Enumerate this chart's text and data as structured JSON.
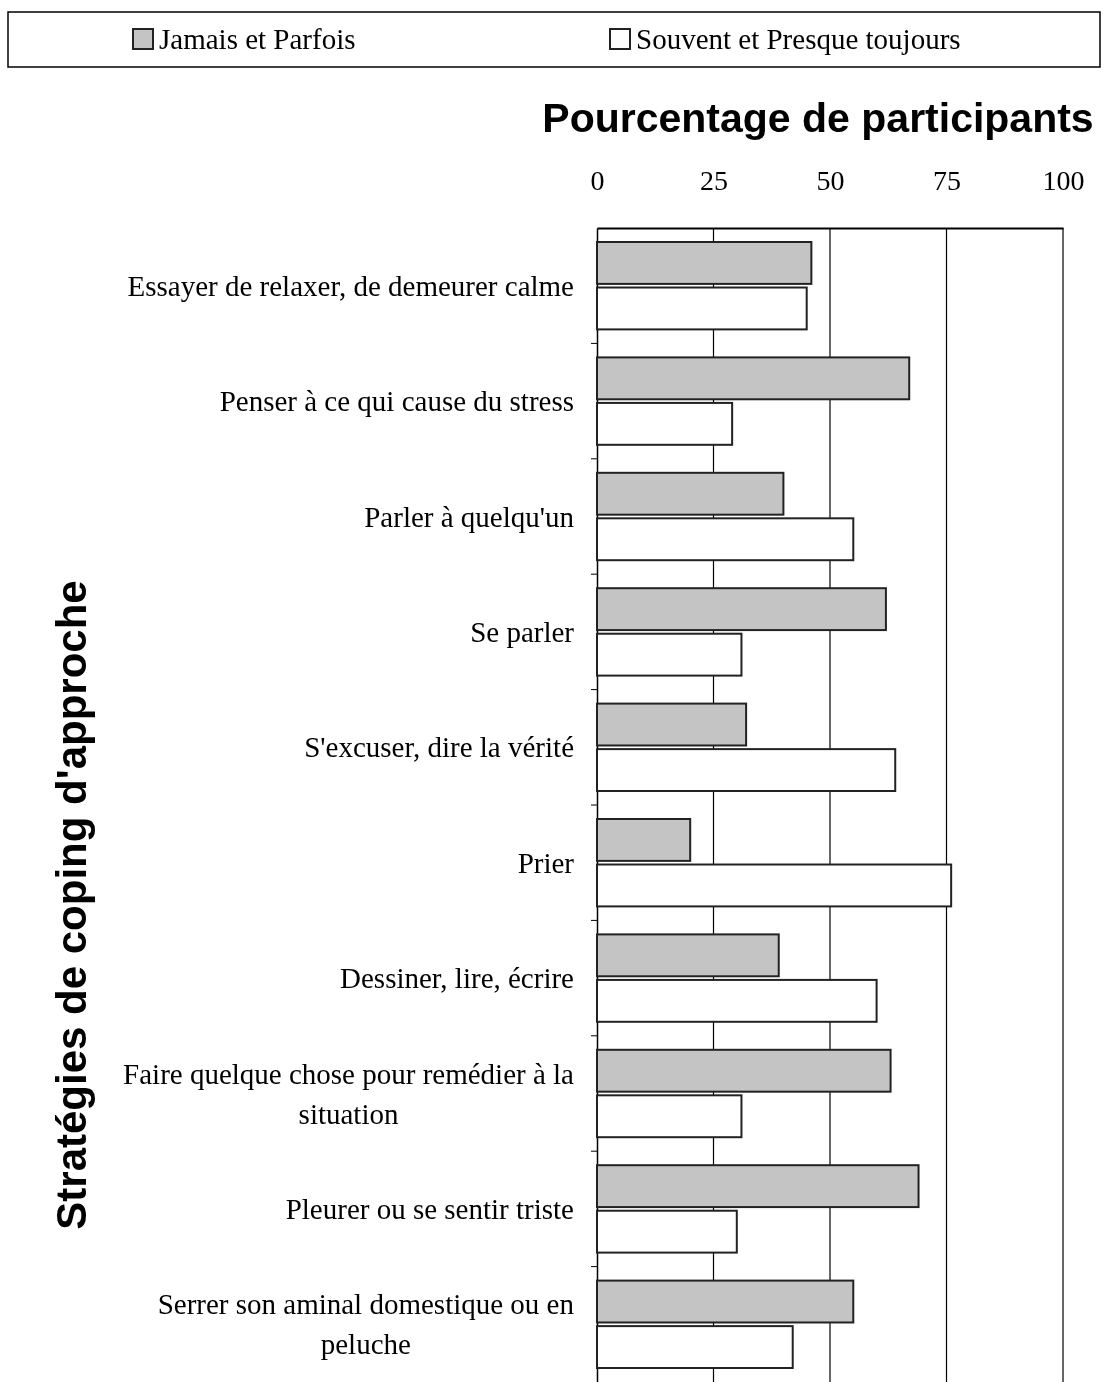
{
  "chart_data": {
    "type": "bar",
    "orientation": "horizontal",
    "xlabel": "Pourcentage de participants",
    "ylabel": "Stratégies de coping d'approche",
    "categories": [
      "Essayer de relaxer, de demeurer calme",
      "Penser à ce qui cause du stress",
      "Parler à quelqu'un",
      "Se parler",
      "S'excuser, dire la vérité",
      "Prier",
      "Dessiner, lire, écrire",
      "Faire quelque chose pour remédier à la situation",
      "Pleurer ou se sentir triste",
      "Serrer son aminal domestique ou en peluche"
    ],
    "series": [
      {
        "name": "Jamais et Parfois",
        "color": "#c4c4c4",
        "values": [
          46,
          67,
          40,
          62,
          32,
          20,
          39,
          63,
          69,
          55
        ]
      },
      {
        "name": "Souvent et Presque toujours",
        "color": "#ffffff",
        "values": [
          45,
          29,
          55,
          31,
          64,
          76,
          60,
          31,
          30,
          42
        ]
      }
    ],
    "xlim": [
      0,
      100
    ],
    "xticks": [
      0,
      25,
      50,
      75,
      100
    ],
    "grid": "x",
    "legend": "top"
  }
}
